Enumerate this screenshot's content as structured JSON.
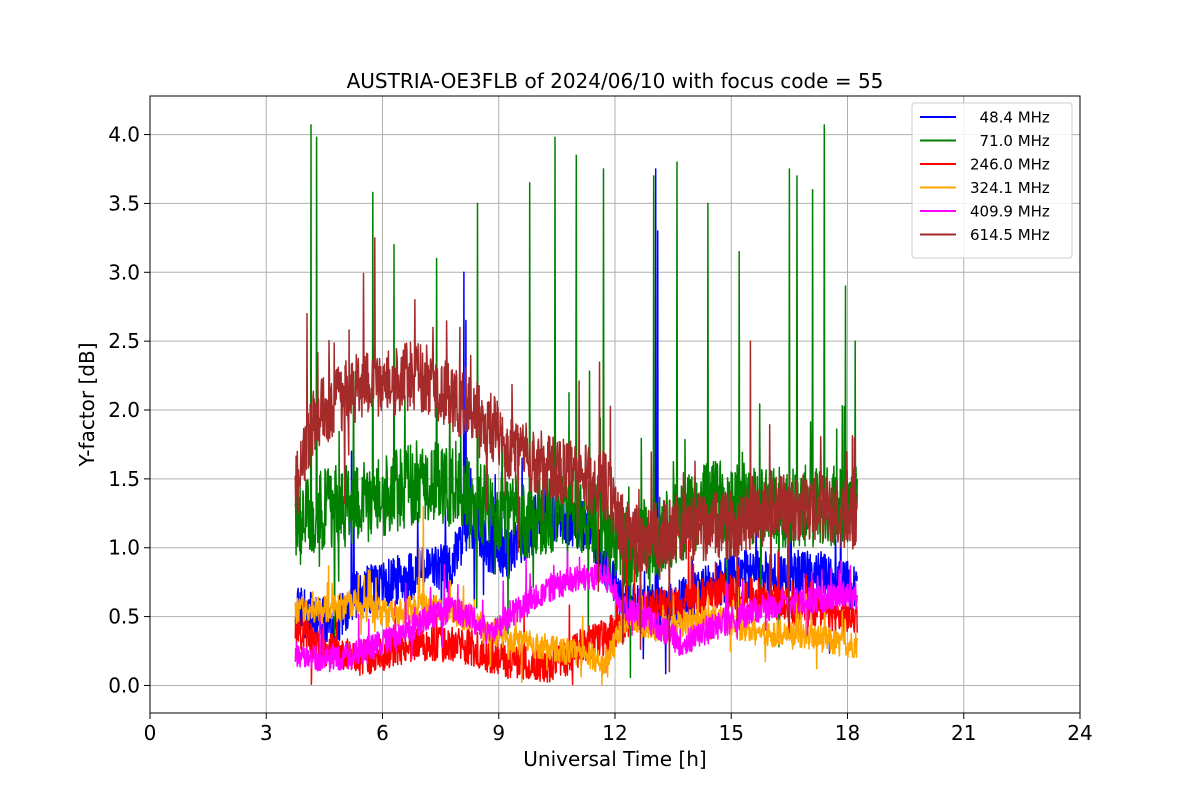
{
  "chart_data": {
    "type": "line",
    "title": "AUSTRIA-OE3FLB of 2024/06/10 with focus code = 55",
    "xlabel": "Universal Time [h]",
    "ylabel": "Y-factor [dB]",
    "xlim": [
      0,
      24
    ],
    "ylim": [
      -0.2,
      4.28
    ],
    "xticks": [
      0,
      3,
      6,
      9,
      12,
      15,
      18,
      21,
      24
    ],
    "xtick_labels": [
      "0",
      "3",
      "6",
      "9",
      "12",
      "15",
      "18",
      "21",
      "24"
    ],
    "yticks": [
      0.0,
      0.5,
      1.0,
      1.5,
      2.0,
      2.5,
      3.0,
      3.5,
      4.0
    ],
    "ytick_labels": [
      "0.0",
      "0.5",
      "1.0",
      "1.5",
      "2.0",
      "2.5",
      "3.0",
      "3.5",
      "4.0"
    ],
    "grid": true,
    "legend_position": "top-right",
    "x_start": 3.75,
    "x_end": 18.25,
    "series": [
      {
        "name": "48.4 MHz",
        "label": "  48.4 MHz",
        "color": "#0000ff",
        "x": [
          3.75,
          4.25,
          4.75,
          5.25,
          5.75,
          6.25,
          6.75,
          7.25,
          7.75,
          8.25,
          8.75,
          9.25,
          9.75,
          10.25,
          10.75,
          11.25,
          11.75,
          12.25,
          12.75,
          13.25,
          13.75,
          14.25,
          14.75,
          15.25,
          15.75,
          16.25,
          16.75,
          17.25,
          17.75,
          18.25
        ],
        "base": [
          0.55,
          0.5,
          0.45,
          0.65,
          0.7,
          0.75,
          0.8,
          0.85,
          0.85,
          1.2,
          1.0,
          0.95,
          1.1,
          1.2,
          1.2,
          1.15,
          0.9,
          0.6,
          0.55,
          0.55,
          0.6,
          0.7,
          0.75,
          0.8,
          0.8,
          0.8,
          0.8,
          0.8,
          0.75,
          0.7
        ],
        "noise": 0.18,
        "spikes": [
          [
            8.1,
            3.0
          ],
          [
            8.15,
            2.65
          ],
          [
            13.05,
            3.75
          ],
          [
            13.1,
            3.3
          ],
          [
            5.2,
            1.7
          ],
          [
            9.6,
            1.65
          ],
          [
            10.2,
            1.6
          ]
        ]
      },
      {
        "name": "71.0 MHz",
        "label": "  71.0 MHz",
        "color": "#008000",
        "x": [
          3.75,
          4.25,
          4.75,
          5.25,
          5.75,
          6.25,
          6.75,
          7.25,
          7.75,
          8.25,
          8.75,
          9.25,
          9.75,
          10.25,
          10.75,
          11.25,
          11.75,
          12.25,
          12.75,
          13.25,
          13.75,
          14.25,
          14.75,
          15.25,
          15.75,
          16.25,
          16.75,
          17.25,
          17.75,
          18.25
        ],
        "base": [
          1.15,
          1.25,
          1.3,
          1.3,
          1.35,
          1.4,
          1.45,
          1.5,
          1.45,
          1.35,
          1.3,
          1.25,
          1.2,
          1.25,
          1.3,
          1.25,
          1.1,
          1.0,
          1.05,
          1.1,
          1.2,
          1.3,
          1.35,
          1.35,
          1.3,
          1.3,
          1.3,
          1.3,
          1.3,
          1.35
        ],
        "noise": 0.3,
        "spikes": [
          [
            4.15,
            4.07
          ],
          [
            4.3,
            3.98
          ],
          [
            5.75,
            3.58
          ],
          [
            6.3,
            3.2
          ],
          [
            7.4,
            3.1
          ],
          [
            8.45,
            3.5
          ],
          [
            9.8,
            3.65
          ],
          [
            10.45,
            3.98
          ],
          [
            11.0,
            3.85
          ],
          [
            11.7,
            3.75
          ],
          [
            13.0,
            3.7
          ],
          [
            13.6,
            3.8
          ],
          [
            14.4,
            3.5
          ],
          [
            15.2,
            3.15
          ],
          [
            16.5,
            3.75
          ],
          [
            16.7,
            3.7
          ],
          [
            17.1,
            3.6
          ],
          [
            17.4,
            4.07
          ],
          [
            17.95,
            2.9
          ],
          [
            18.2,
            2.5
          ]
        ]
      },
      {
        "name": "246.0 MHz",
        "label": "246.0 MHz",
        "color": "#ff0000",
        "x": [
          3.75,
          4.25,
          4.75,
          5.25,
          5.75,
          6.25,
          6.75,
          7.25,
          7.75,
          8.25,
          8.75,
          9.25,
          9.75,
          10.25,
          10.75,
          11.25,
          11.75,
          12.25,
          12.75,
          13.25,
          13.75,
          14.25,
          14.75,
          15.25,
          15.75,
          16.25,
          16.75,
          17.25,
          17.75,
          18.25
        ],
        "base": [
          0.4,
          0.3,
          0.25,
          0.2,
          0.2,
          0.25,
          0.3,
          0.3,
          0.3,
          0.28,
          0.22,
          0.18,
          0.17,
          0.15,
          0.2,
          0.3,
          0.35,
          0.45,
          0.55,
          0.6,
          0.6,
          0.65,
          0.7,
          0.65,
          0.65,
          0.6,
          0.55,
          0.55,
          0.5,
          0.5
        ],
        "noise": 0.13,
        "spikes": [
          [
            12.3,
            1.05
          ],
          [
            12.5,
            1.0
          ],
          [
            13.9,
            1.05
          ],
          [
            16.0,
            0.95
          ]
        ]
      },
      {
        "name": "324.1 MHz",
        "label": "324.1 MHz",
        "color": "#ffa500",
        "x": [
          3.75,
          4.25,
          4.75,
          5.25,
          5.75,
          6.25,
          6.75,
          7.25,
          7.75,
          8.25,
          8.75,
          9.25,
          9.75,
          10.25,
          10.75,
          11.25,
          11.75,
          12.25,
          12.75,
          13.25,
          13.75,
          14.25,
          14.75,
          15.25,
          15.75,
          16.25,
          16.75,
          17.25,
          17.75,
          18.25
        ],
        "base": [
          0.55,
          0.55,
          0.55,
          0.6,
          0.55,
          0.52,
          0.55,
          0.58,
          0.55,
          0.48,
          0.4,
          0.35,
          0.3,
          0.28,
          0.25,
          0.22,
          0.18,
          0.45,
          0.45,
          0.4,
          0.45,
          0.48,
          0.48,
          0.42,
          0.38,
          0.38,
          0.35,
          0.35,
          0.3,
          0.3
        ],
        "noise": 0.1,
        "spikes": [
          [
            7.05,
            1.3
          ],
          [
            6.95,
            1.0
          ]
        ]
      },
      {
        "name": "409.9 MHz",
        "label": "409.9 MHz",
        "color": "#ff00ff",
        "x": [
          3.75,
          4.25,
          4.75,
          5.25,
          5.75,
          6.25,
          6.75,
          7.25,
          7.75,
          8.25,
          8.75,
          9.25,
          9.75,
          10.25,
          10.75,
          11.25,
          11.75,
          12.25,
          12.75,
          13.25,
          13.75,
          14.25,
          14.75,
          15.25,
          15.75,
          16.25,
          16.75,
          17.25,
          17.75,
          18.25
        ],
        "base": [
          0.22,
          0.2,
          0.2,
          0.22,
          0.28,
          0.35,
          0.42,
          0.5,
          0.55,
          0.5,
          0.38,
          0.5,
          0.6,
          0.7,
          0.75,
          0.78,
          0.8,
          0.55,
          0.5,
          0.4,
          0.3,
          0.38,
          0.45,
          0.5,
          0.55,
          0.6,
          0.62,
          0.62,
          0.65,
          0.65
        ],
        "noise": 0.1,
        "spikes": []
      },
      {
        "name": "614.5 MHz",
        "label": "614.5 MHz",
        "color": "#a52a2a",
        "x": [
          3.75,
          4.25,
          4.75,
          5.25,
          5.75,
          6.25,
          6.75,
          7.25,
          7.75,
          8.25,
          8.75,
          9.25,
          9.75,
          10.25,
          10.75,
          11.25,
          11.75,
          12.25,
          12.75,
          13.25,
          13.75,
          14.25,
          14.75,
          15.25,
          15.75,
          16.25,
          16.75,
          17.25,
          17.75,
          18.25
        ],
        "base": [
          1.4,
          1.95,
          2.05,
          2.15,
          2.2,
          2.2,
          2.25,
          2.2,
          2.1,
          2.0,
          1.9,
          1.75,
          1.65,
          1.6,
          1.55,
          1.5,
          1.45,
          1.1,
          1.05,
          1.1,
          1.15,
          1.15,
          1.15,
          1.2,
          1.25,
          1.3,
          1.3,
          1.3,
          1.25,
          1.2
        ],
        "noise": 0.25,
        "spikes": [
          [
            5.8,
            3.25
          ],
          [
            4.05,
            2.7
          ],
          [
            13.4,
            0.1
          ],
          [
            12.2,
            0.3
          ],
          [
            7.3,
            2.6
          ],
          [
            15.5,
            2.5
          ]
        ]
      }
    ]
  }
}
